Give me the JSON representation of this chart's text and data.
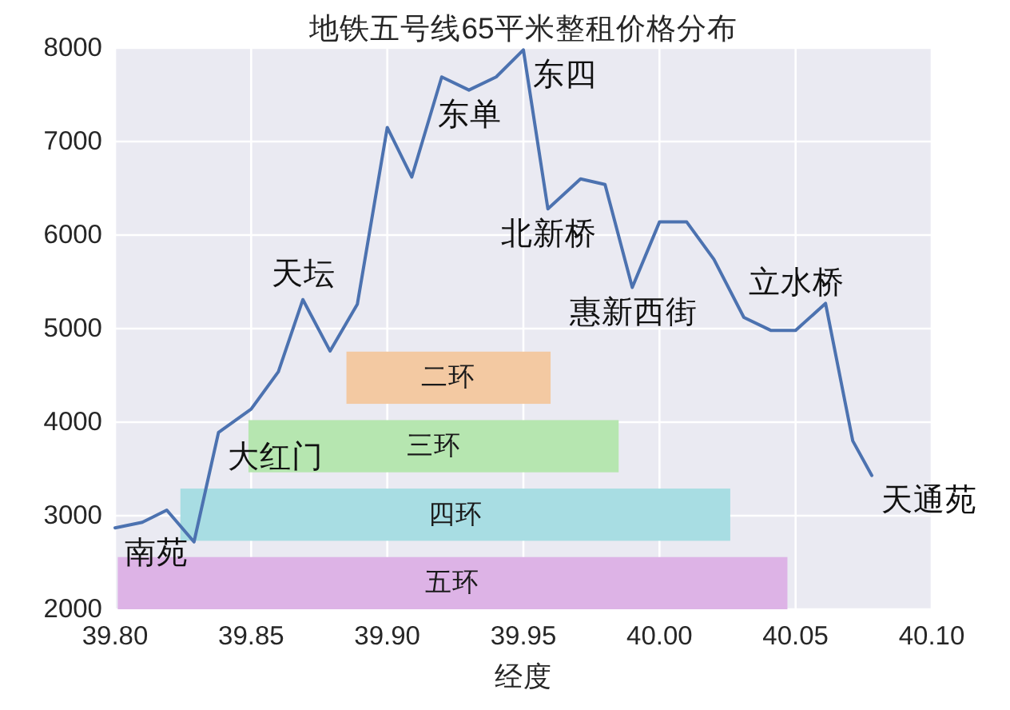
{
  "chart_data": {
    "type": "line",
    "title": "地铁五号线65平米整租价格分布",
    "xlabel": "经度",
    "x": [
      39.8,
      39.81,
      39.819,
      39.829,
      39.838,
      39.85,
      39.86,
      39.869,
      39.879,
      39.889,
      39.9,
      39.909,
      39.92,
      39.93,
      39.94,
      39.95,
      39.959,
      39.971,
      39.98,
      39.99,
      40.0,
      40.01,
      40.02,
      40.031,
      40.041,
      40.05,
      40.061,
      40.071,
      40.078
    ],
    "series": [
      {
        "color": "#4c72b0",
        "values": [
          2870,
          2930,
          3060,
          2720,
          3890,
          4140,
          4540,
          5310,
          4760,
          5260,
          7150,
          6620,
          7690,
          7550,
          7690,
          7980,
          6280,
          6600,
          6540,
          5440,
          6140,
          6140,
          5740,
          5120,
          4980,
          4980,
          5270,
          3800,
          3430
        ]
      }
    ],
    "xlim": [
      39.8,
      40.1
    ],
    "ylim": [
      2000,
      8000
    ],
    "xticks": [
      {
        "value": 39.8,
        "label": "39.80"
      },
      {
        "value": 39.85,
        "label": "39.85"
      },
      {
        "value": 39.9,
        "label": "39.90"
      },
      {
        "value": 39.95,
        "label": "39.95"
      },
      {
        "value": 40.0,
        "label": "40.00"
      },
      {
        "value": 40.05,
        "label": "40.05"
      },
      {
        "value": 40.1,
        "label": "40.10"
      }
    ],
    "yticks": [
      2000,
      3000,
      4000,
      5000,
      6000,
      7000,
      8000
    ],
    "grid": true,
    "bands": [
      {
        "axis": "x",
        "from": 39.885,
        "to": 39.96,
        "label": "二环",
        "color": "#f3c9a2"
      },
      {
        "axis": "x",
        "from": 39.849,
        "to": 39.985,
        "label": "三环",
        "color": "#b6e6b0"
      },
      {
        "axis": "x",
        "from": 39.824,
        "to": 40.026,
        "label": "四环",
        "color": "#a8dde3"
      },
      {
        "axis": "x",
        "from": 39.801,
        "to": 40.047,
        "label": "五环",
        "color": "#ddb3e6"
      }
    ],
    "annotations": [
      {
        "text": "南苑",
        "x": 39.8,
        "y": 2870
      },
      {
        "text": "大红门",
        "x": 39.838,
        "y": 3890
      },
      {
        "text": "天坛",
        "x": 39.869,
        "y": 5310
      },
      {
        "text": "东单",
        "x": 39.93,
        "y": 7550
      },
      {
        "text": "东四",
        "x": 39.95,
        "y": 7980
      },
      {
        "text": "北新桥",
        "x": 39.959,
        "y": 6280
      },
      {
        "text": "惠新西街",
        "x": 39.99,
        "y": 5440
      },
      {
        "text": "立水桥",
        "x": 40.05,
        "y": 4980
      },
      {
        "text": "天通苑",
        "x": 40.078,
        "y": 3430
      }
    ]
  }
}
